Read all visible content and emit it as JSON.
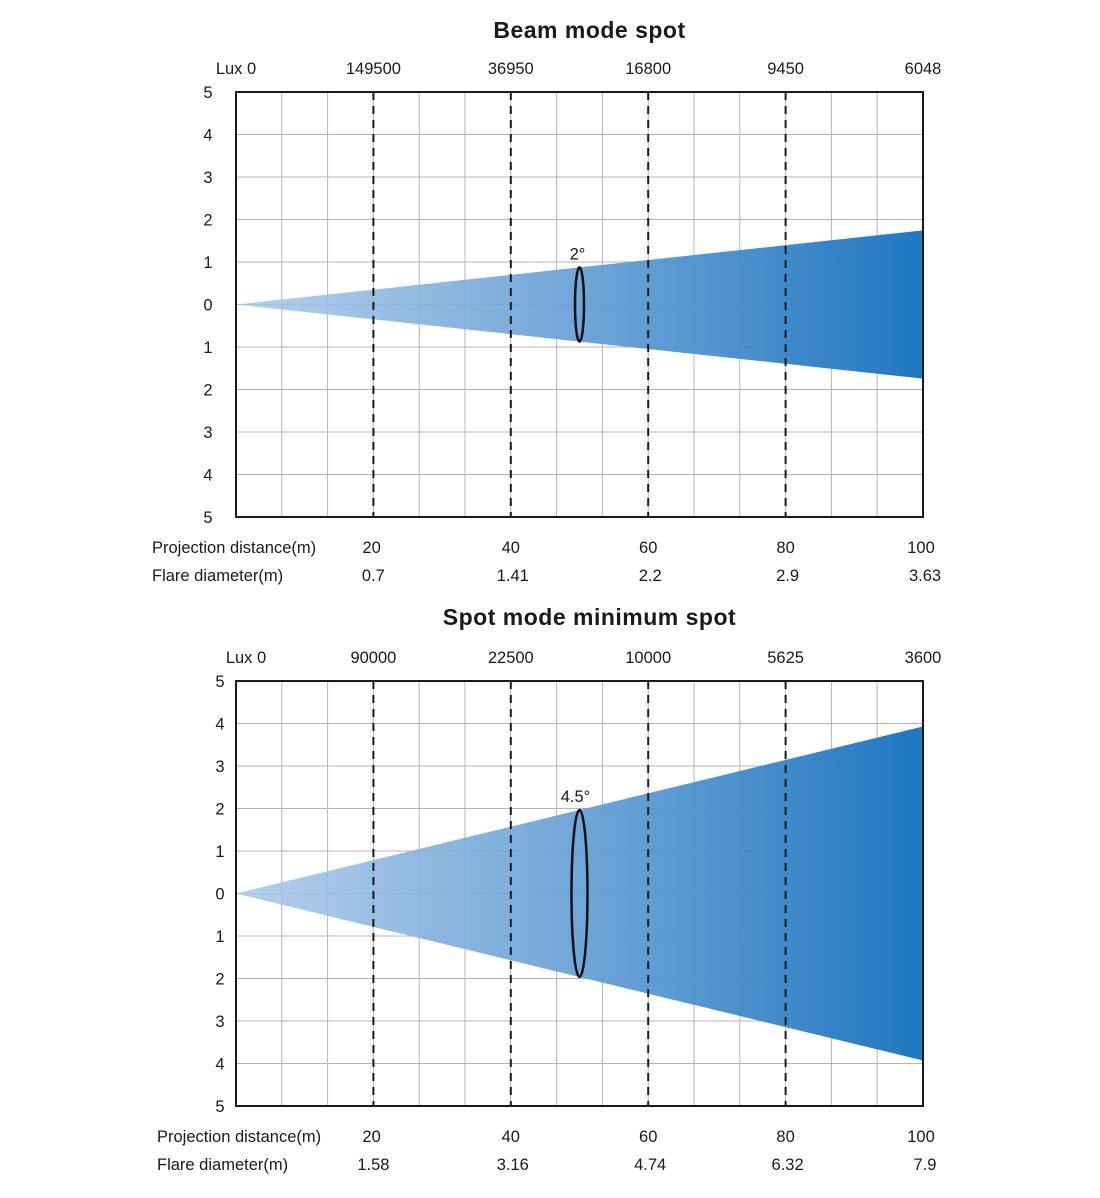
{
  "chart_data": [
    {
      "type": "area",
      "title": "Beam mode spot",
      "beam_angle_label": "2°",
      "beam_angle_deg": 2,
      "lux_label": "Lux 0",
      "lux_values": [
        "149500",
        "36950",
        "16800",
        "9450",
        "6048"
      ],
      "y_ticks": [
        "5",
        "4",
        "3",
        "2",
        "1",
        "0",
        "1",
        "2",
        "3",
        "4",
        "5"
      ],
      "ylim": [
        -5,
        5
      ],
      "xlim": [
        0,
        100
      ],
      "grid": true,
      "projection_label": "Projection distance(m)",
      "projection_distance": [
        "20",
        "40",
        "60",
        "80",
        "100"
      ],
      "flare_label": "Flare diameter(m)",
      "flare_diameter": [
        "0.7",
        "1.41",
        "2.2",
        "2.9",
        "3.63"
      ],
      "colors": {
        "beam_start": "#a9c6e8",
        "beam_end": "#1f77c1",
        "grid": "#b5b5b5"
      }
    },
    {
      "type": "area",
      "title": "Spot mode minimum spot",
      "beam_angle_label": "4.5°",
      "beam_angle_deg": 4.5,
      "lux_label": "Lux 0",
      "lux_values": [
        "90000",
        "22500",
        "10000",
        "5625",
        "3600"
      ],
      "y_ticks": [
        "5",
        "4",
        "3",
        "2",
        "1",
        "0",
        "1",
        "2",
        "3",
        "4",
        "5"
      ],
      "ylim": [
        -5,
        5
      ],
      "xlim": [
        0,
        100
      ],
      "grid": true,
      "projection_label": "Projection distance(m)",
      "projection_distance": [
        "20",
        "40",
        "60",
        "80",
        "100"
      ],
      "flare_label": "Flare diameter(m)",
      "flare_diameter": [
        "1.58",
        "3.16",
        "4.74",
        "6.32",
        "7.9"
      ],
      "colors": {
        "beam_start": "#a9c6e8",
        "beam_end": "#1f77c1",
        "grid": "#b5b5b5"
      }
    }
  ]
}
